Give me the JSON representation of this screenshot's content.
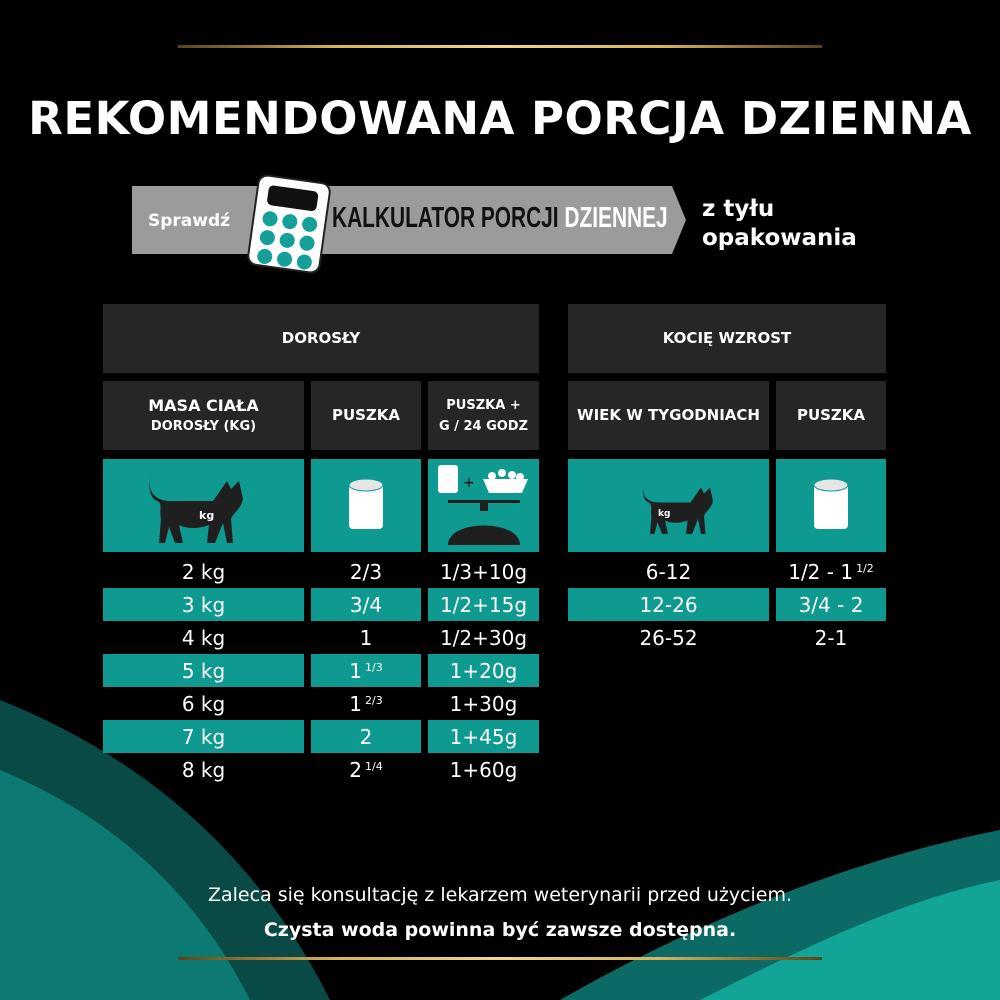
{
  "title": "REKOMENDOWANA PORCJA DZIENNA",
  "banner": {
    "check": "Sprawdź",
    "calc_dark": "KALKULATOR PORCJI ",
    "calc_light": "DZIENNEJ",
    "back_line1": "z tyłu",
    "back_line2": "opakowania"
  },
  "adult": {
    "header": "DOROSŁY",
    "col1_line1": "MASA CIAŁA",
    "col1_line2": "DOROSŁY (KG)",
    "col2": "PUSZKA",
    "col3_line1": "PUSZKA +",
    "col3_line2": "G / 24 GODZ",
    "icon_label": "kg",
    "rows": [
      {
        "weight": "2 kg",
        "can": "2/3",
        "can_sup": "",
        "mix": "1/3+10g"
      },
      {
        "weight": "3 kg",
        "can": "3/4",
        "can_sup": "",
        "mix": "1/2+15g"
      },
      {
        "weight": "4 kg",
        "can": "1",
        "can_sup": "",
        "mix": "1/2+30g"
      },
      {
        "weight": "5 kg",
        "can": "1",
        "can_sup": "1/3",
        "mix": "1+20g"
      },
      {
        "weight": "6 kg",
        "can": "1",
        "can_sup": "2/3",
        "mix": "1+30g"
      },
      {
        "weight": "7 kg",
        "can": "2",
        "can_sup": "",
        "mix": "1+45g"
      },
      {
        "weight": "8 kg",
        "can": "2",
        "can_sup": "1/4",
        "mix": "1+60g"
      }
    ]
  },
  "kitten": {
    "header": "KOCIĘ WZROST",
    "col1": "WIEK W TYGODNIACH",
    "col2": "PUSZKA",
    "icon_label": "kg",
    "rows": [
      {
        "age": "6-12",
        "can": "1/2 - 1",
        "can_sup": "1/2"
      },
      {
        "age": "12-26",
        "can": "3/4 - 2",
        "can_sup": ""
      },
      {
        "age": "26-52",
        "can": "2-1",
        "can_sup": ""
      }
    ]
  },
  "footer": {
    "line1": "Zaleca się konsultację z lekarzem weterynarii przed użyciem.",
    "line2": "Czysta woda powinna być zawsze dostępna."
  },
  "colors": {
    "teal": "#0e9a91",
    "dark_cell": "#262626",
    "gold": "#d9b25a"
  }
}
